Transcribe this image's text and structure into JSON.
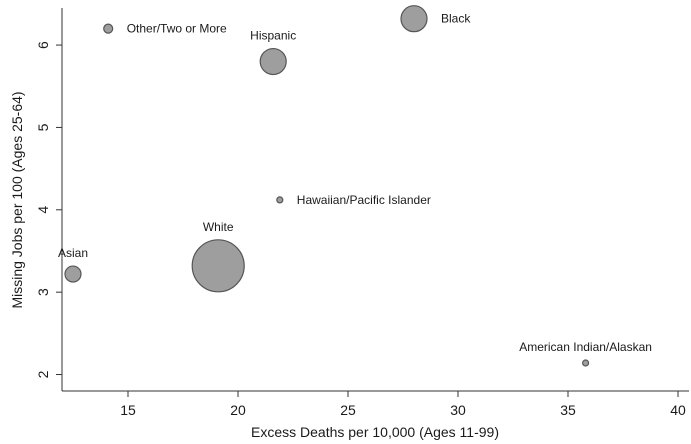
{
  "chart_data": {
    "type": "scatter",
    "xlabel": "Excess Deaths per 10,000 (Ages 11-99)",
    "ylabel": "Missing Jobs per 100 (Ages 25-64)",
    "xlim": [
      12,
      40.5
    ],
    "ylim": [
      1.8,
      6.45
    ],
    "xticks": [
      15,
      20,
      25,
      30,
      35,
      40
    ],
    "yticks": [
      2,
      3,
      4,
      5,
      6
    ],
    "grid": false,
    "marker_color": "#999999",
    "marker_edge": "#555555",
    "points": [
      {
        "label": "Other/Two or More",
        "x": 14.1,
        "y": 6.2,
        "size": "small",
        "label_pos": "right"
      },
      {
        "label": "Hispanic",
        "x": 21.6,
        "y": 5.8,
        "size": "medium",
        "label_pos": "above"
      },
      {
        "label": "Black",
        "x": 28.0,
        "y": 6.32,
        "size": "medium",
        "label_pos": "right"
      },
      {
        "label": "Hawaiian/Pacific Islander",
        "x": 21.9,
        "y": 4.12,
        "size": "tiny",
        "label_pos": "right"
      },
      {
        "label": "White",
        "x": 19.1,
        "y": 3.32,
        "size": "large",
        "label_pos": "above"
      },
      {
        "label": "Asian",
        "x": 12.5,
        "y": 3.22,
        "size": "small-medium",
        "label_pos": "above"
      },
      {
        "label": "American Indian/Alaskan",
        "x": 35.8,
        "y": 2.14,
        "size": "tiny",
        "label_pos": "above"
      }
    ]
  }
}
